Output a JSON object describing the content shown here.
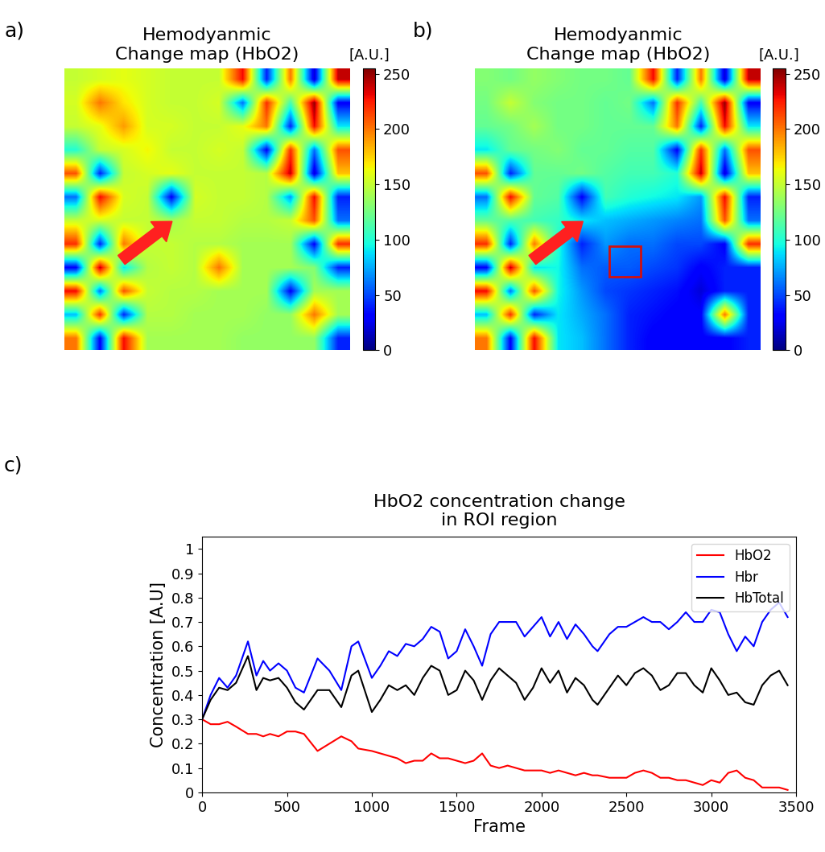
{
  "chart_data": [
    {
      "type": "heatmap",
      "panel": "a)",
      "title": "Hemodyanmic\nChange map (HbO2)",
      "tick_labels": false,
      "cells": [
        [
          150,
          155,
          160,
          155,
          150,
          150,
          150,
          230,
          40,
          200,
          20,
          240
        ],
        [
          155,
          200,
          170,
          155,
          150,
          150,
          155,
          60,
          220,
          110,
          250,
          30
        ],
        [
          150,
          160,
          190,
          155,
          155,
          150,
          150,
          160,
          200,
          40,
          230,
          90
        ],
        [
          100,
          150,
          155,
          165,
          150,
          150,
          155,
          150,
          30,
          220,
          60,
          210
        ],
        [
          210,
          40,
          150,
          155,
          160,
          150,
          150,
          150,
          145,
          240,
          20,
          180
        ],
        [
          60,
          230,
          155,
          150,
          30,
          155,
          150,
          150,
          145,
          70,
          230,
          40
        ],
        [
          150,
          155,
          150,
          150,
          140,
          150,
          150,
          145,
          145,
          150,
          210,
          60
        ],
        [
          220,
          40,
          200,
          150,
          150,
          145,
          145,
          140,
          140,
          140,
          30,
          220
        ],
        [
          30,
          240,
          90,
          145,
          150,
          145,
          200,
          140,
          140,
          140,
          130,
          40
        ],
        [
          230,
          60,
          210,
          150,
          145,
          145,
          140,
          140,
          140,
          30,
          140,
          140
        ],
        [
          80,
          220,
          40,
          145,
          145,
          140,
          140,
          140,
          135,
          135,
          200,
          140
        ],
        [
          200,
          30,
          230,
          140,
          140,
          140,
          140,
          135,
          135,
          135,
          135,
          40
        ]
      ],
      "colorbar": {
        "label": "[A.U.]",
        "range": [
          0,
          255
        ],
        "ticks": [
          0,
          50,
          100,
          150,
          200,
          250
        ]
      }
    },
    {
      "type": "heatmap",
      "panel": "b)",
      "title": "Hemodyanmic\nChange map (HbO2)",
      "tick_labels": false,
      "cells": [
        [
          130,
          125,
          135,
          130,
          125,
          125,
          120,
          230,
          40,
          200,
          20,
          240
        ],
        [
          125,
          150,
          130,
          125,
          125,
          120,
          125,
          60,
          220,
          110,
          250,
          30
        ],
        [
          120,
          125,
          140,
          125,
          125,
          120,
          120,
          120,
          200,
          40,
          230,
          90
        ],
        [
          90,
          120,
          125,
          130,
          120,
          120,
          115,
          115,
          30,
          220,
          60,
          210
        ],
        [
          210,
          40,
          120,
          120,
          125,
          115,
          110,
          110,
          100,
          240,
          20,
          180
        ],
        [
          60,
          230,
          120,
          115,
          30,
          110,
          100,
          95,
          90,
          70,
          230,
          40
        ],
        [
          120,
          115,
          110,
          105,
          90,
          80,
          75,
          70,
          65,
          60,
          210,
          60
        ],
        [
          220,
          40,
          200,
          100,
          40,
          70,
          60,
          60,
          50,
          50,
          30,
          220
        ],
        [
          30,
          240,
          90,
          95,
          60,
          55,
          55,
          50,
          45,
          30,
          40,
          40
        ],
        [
          230,
          60,
          210,
          95,
          70,
          50,
          45,
          40,
          35,
          20,
          40,
          40
        ],
        [
          80,
          220,
          40,
          90,
          75,
          60,
          40,
          35,
          30,
          30,
          200,
          40
        ],
        [
          200,
          30,
          230,
          90,
          80,
          60,
          40,
          30,
          30,
          30,
          30,
          40
        ]
      ],
      "colorbar": {
        "label": "[A.U.]",
        "range": [
          0,
          255
        ],
        "ticks": [
          0,
          50,
          100,
          150,
          200,
          250
        ]
      }
    },
    {
      "type": "line",
      "panel": "c)",
      "title": "HbO2 concentration change\nin ROI region",
      "x_label": "Frame",
      "y_label": "Concentration [A.U]",
      "x": [
        0,
        50,
        100,
        150,
        200,
        270,
        320,
        360,
        400,
        450,
        500,
        550,
        600,
        680,
        750,
        820,
        880,
        920,
        1000,
        1050,
        1100,
        1150,
        1200,
        1250,
        1300,
        1350,
        1400,
        1450,
        1500,
        1550,
        1600,
        1650,
        1700,
        1750,
        1800,
        1850,
        1900,
        1950,
        2000,
        2050,
        2100,
        2150,
        2200,
        2250,
        2300,
        2330,
        2400,
        2450,
        2500,
        2550,
        2600,
        2650,
        2700,
        2750,
        2800,
        2850,
        2900,
        2950,
        3000,
        3050,
        3100,
        3150,
        3200,
        3250,
        3300,
        3350,
        3400,
        3450
      ],
      "series": [
        {
          "name": "HbO2",
          "color": "#ff0000",
          "values": [
            0.3,
            0.28,
            0.28,
            0.29,
            0.27,
            0.24,
            0.24,
            0.23,
            0.24,
            0.23,
            0.25,
            0.25,
            0.24,
            0.17,
            0.2,
            0.23,
            0.21,
            0.18,
            0.17,
            0.16,
            0.15,
            0.14,
            0.12,
            0.13,
            0.13,
            0.16,
            0.14,
            0.14,
            0.13,
            0.12,
            0.13,
            0.16,
            0.11,
            0.1,
            0.11,
            0.1,
            0.09,
            0.09,
            0.09,
            0.08,
            0.09,
            0.08,
            0.07,
            0.08,
            0.07,
            0.07,
            0.06,
            0.06,
            0.06,
            0.08,
            0.09,
            0.08,
            0.06,
            0.06,
            0.05,
            0.05,
            0.04,
            0.03,
            0.05,
            0.04,
            0.08,
            0.09,
            0.06,
            0.05,
            0.02,
            0.02,
            0.02,
            0.01
          ]
        },
        {
          "name": "Hbr",
          "color": "#0000ff",
          "values": [
            0.3,
            0.4,
            0.47,
            0.43,
            0.48,
            0.62,
            0.48,
            0.54,
            0.5,
            0.53,
            0.5,
            0.43,
            0.41,
            0.55,
            0.5,
            0.42,
            0.6,
            0.62,
            0.47,
            0.52,
            0.58,
            0.56,
            0.61,
            0.6,
            0.63,
            0.68,
            0.66,
            0.55,
            0.58,
            0.67,
            0.6,
            0.52,
            0.65,
            0.7,
            0.7,
            0.7,
            0.64,
            0.68,
            0.72,
            0.64,
            0.7,
            0.63,
            0.69,
            0.65,
            0.6,
            0.58,
            0.65,
            0.68,
            0.68,
            0.7,
            0.72,
            0.7,
            0.7,
            0.67,
            0.7,
            0.74,
            0.7,
            0.7,
            0.75,
            0.74,
            0.65,
            0.58,
            0.64,
            0.6,
            0.7,
            0.75,
            0.78,
            0.72
          ]
        },
        {
          "name": "HbTotal",
          "color": "#000000",
          "values": [
            0.3,
            0.38,
            0.43,
            0.42,
            0.45,
            0.56,
            0.42,
            0.47,
            0.46,
            0.47,
            0.43,
            0.37,
            0.34,
            0.42,
            0.42,
            0.35,
            0.48,
            0.5,
            0.33,
            0.38,
            0.44,
            0.42,
            0.44,
            0.4,
            0.47,
            0.52,
            0.5,
            0.4,
            0.42,
            0.5,
            0.46,
            0.38,
            0.46,
            0.51,
            0.48,
            0.45,
            0.38,
            0.43,
            0.51,
            0.45,
            0.5,
            0.41,
            0.47,
            0.44,
            0.38,
            0.36,
            0.43,
            0.48,
            0.44,
            0.49,
            0.51,
            0.48,
            0.42,
            0.44,
            0.49,
            0.49,
            0.44,
            0.41,
            0.51,
            0.46,
            0.4,
            0.41,
            0.37,
            0.36,
            0.44,
            0.48,
            0.5,
            0.44
          ]
        }
      ],
      "xlim": [
        0,
        3500
      ],
      "xticks": [
        0,
        500,
        1000,
        1500,
        2000,
        2500,
        3000,
        3500
      ],
      "ylim": [
        0,
        1.05
      ],
      "yticks": [
        0,
        0.1,
        0.2,
        0.3,
        0.4,
        0.5,
        0.6,
        0.7,
        0.8,
        0.9,
        1
      ],
      "legend": "upper right"
    }
  ]
}
